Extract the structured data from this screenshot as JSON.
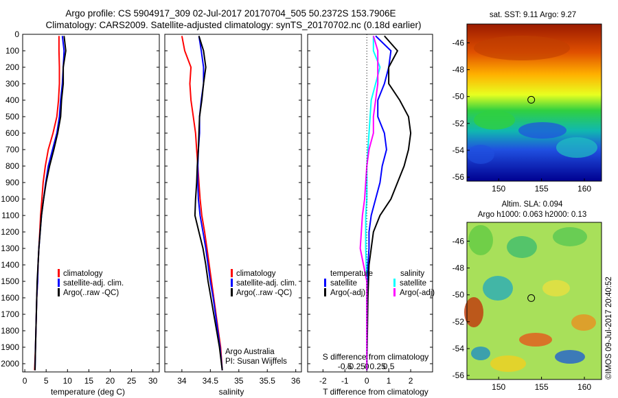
{
  "header": {
    "line1": "Argo profile: CS 5904917_309 02-Jul-2017 20170704_505 50.2372S 153.7906E",
    "line2": "Climatology: CARS2009. Satellite-adjusted climatology: synTS_20170702.nc (0.18d earlier)"
  },
  "colors": {
    "climatology": "#ff0000",
    "satellite": "#0000ff",
    "argo": "#000000",
    "satellite_salinity": "#00ffff",
    "argo_salinity_adj": "#ff00ff"
  },
  "chart_data": [
    {
      "id": "temperature",
      "type": "line",
      "xlabel": "temperature (deg C)",
      "ylabel": "",
      "xlim": [
        -0.5,
        31.5
      ],
      "ylim": [
        2050,
        0
      ],
      "xticks": [
        "0",
        "5",
        "10",
        "15",
        "20",
        "25",
        "30"
      ],
      "yticks": [
        "0",
        "100",
        "200",
        "300",
        "400",
        "500",
        "600",
        "700",
        "800",
        "900",
        "1000",
        "1100",
        "1200",
        "1300",
        "1400",
        "1500",
        "1600",
        "1700",
        "1800",
        "1900",
        "2000"
      ],
      "legend_position": "lower-center",
      "series": [
        {
          "name": "climatology",
          "color": "#ff0000",
          "points": [
            [
              8.0,
              10
            ],
            [
              8.0,
              100
            ],
            [
              8.1,
              200
            ],
            [
              8.1,
              300
            ],
            [
              7.9,
              400
            ],
            [
              7.5,
              500
            ],
            [
              6.6,
              600
            ],
            [
              5.5,
              700
            ],
            [
              4.8,
              800
            ],
            [
              4.3,
              900
            ],
            [
              4.0,
              1000
            ],
            [
              3.7,
              1100
            ],
            [
              3.5,
              1200
            ],
            [
              3.3,
              1300
            ],
            [
              3.1,
              1400
            ],
            [
              3.0,
              1500
            ],
            [
              2.8,
              1600
            ],
            [
              2.7,
              1700
            ],
            [
              2.6,
              1800
            ],
            [
              2.5,
              1900
            ],
            [
              2.3,
              2040
            ]
          ]
        },
        {
          "name": "satellite-adj. clim.",
          "color": "#0000ff",
          "points": [
            [
              8.8,
              10
            ],
            [
              9.2,
              100
            ],
            [
              9.0,
              200
            ],
            [
              8.8,
              300
            ],
            [
              8.4,
              400
            ],
            [
              8.1,
              500
            ],
            [
              7.5,
              600
            ],
            [
              6.5,
              700
            ],
            [
              5.5,
              800
            ],
            [
              4.9,
              900
            ],
            [
              4.4,
              1000
            ],
            [
              3.9,
              1100
            ],
            [
              3.6,
              1200
            ],
            [
              3.3,
              1300
            ],
            [
              3.1,
              1400
            ],
            [
              3.0,
              1500
            ],
            [
              2.8,
              1600
            ],
            [
              2.7,
              1700
            ],
            [
              2.6,
              1800
            ],
            [
              2.5,
              1900
            ],
            [
              2.4,
              2040
            ]
          ]
        },
        {
          "name": "Argo(..raw -QC)",
          "color": "#000000",
          "points": [
            [
              9.2,
              10
            ],
            [
              9.6,
              100
            ],
            [
              9.0,
              200
            ],
            [
              9.0,
              300
            ],
            [
              8.6,
              400
            ],
            [
              8.4,
              500
            ],
            [
              7.7,
              600
            ],
            [
              6.8,
              700
            ],
            [
              5.8,
              800
            ],
            [
              5.0,
              900
            ],
            [
              4.4,
              1000
            ],
            [
              3.9,
              1100
            ],
            [
              3.6,
              1200
            ],
            [
              3.3,
              1300
            ],
            [
              3.1,
              1400
            ],
            [
              2.9,
              1500
            ],
            [
              2.8,
              1600
            ],
            [
              2.7,
              1700
            ],
            [
              2.6,
              1800
            ],
            [
              2.5,
              1900
            ],
            [
              2.4,
              2040
            ]
          ]
        }
      ]
    },
    {
      "id": "salinity",
      "type": "line",
      "xlabel": "salinity",
      "xlim": [
        33.7,
        36.1
      ],
      "ylim": [
        2050,
        0
      ],
      "xticks": [
        "34",
        "34.5",
        "35",
        "35.5",
        "36"
      ],
      "legend_position": "lower-right",
      "annotation": [
        "Argo Australia",
        "PI: Susan Wijffels"
      ],
      "series": [
        {
          "name": "climatology",
          "color": "#ff0000",
          "points": [
            [
              34.0,
              10
            ],
            [
              34.05,
              100
            ],
            [
              34.16,
              200
            ],
            [
              34.14,
              300
            ],
            [
              34.16,
              400
            ],
            [
              34.2,
              500
            ],
            [
              34.24,
              600
            ],
            [
              34.26,
              700
            ],
            [
              34.28,
              800
            ],
            [
              34.3,
              900
            ],
            [
              34.32,
              1000
            ],
            [
              34.35,
              1100
            ],
            [
              34.4,
              1200
            ],
            [
              34.44,
              1300
            ],
            [
              34.48,
              1400
            ],
            [
              34.52,
              1500
            ],
            [
              34.56,
              1600
            ],
            [
              34.6,
              1700
            ],
            [
              34.64,
              1800
            ],
            [
              34.68,
              1900
            ],
            [
              34.71,
              2040
            ]
          ]
        },
        {
          "name": "satellite-adj. clim.",
          "color": "#0000ff",
          "points": [
            [
              34.3,
              10
            ],
            [
              34.34,
              100
            ],
            [
              34.38,
              200
            ],
            [
              34.38,
              300
            ],
            [
              34.34,
              400
            ],
            [
              34.31,
              500
            ],
            [
              34.31,
              600
            ],
            [
              34.29,
              700
            ],
            [
              34.28,
              800
            ],
            [
              34.28,
              900
            ],
            [
              34.29,
              1000
            ],
            [
              34.32,
              1100
            ],
            [
              34.37,
              1200
            ],
            [
              34.42,
              1300
            ],
            [
              34.46,
              1400
            ],
            [
              34.5,
              1500
            ],
            [
              34.55,
              1600
            ],
            [
              34.59,
              1700
            ],
            [
              34.63,
              1800
            ],
            [
              34.67,
              1900
            ],
            [
              34.71,
              2040
            ]
          ]
        },
        {
          "name": "Argo(..raw -QC)",
          "color": "#000000",
          "points": [
            [
              34.3,
              10
            ],
            [
              34.38,
              100
            ],
            [
              34.42,
              200
            ],
            [
              34.38,
              300
            ],
            [
              34.35,
              400
            ],
            [
              34.31,
              500
            ],
            [
              34.3,
              600
            ],
            [
              34.29,
              700
            ],
            [
              34.27,
              800
            ],
            [
              34.26,
              900
            ],
            [
              34.24,
              1000
            ],
            [
              34.23,
              1100
            ],
            [
              34.3,
              1200
            ],
            [
              34.37,
              1300
            ],
            [
              34.42,
              1400
            ],
            [
              34.46,
              1500
            ],
            [
              34.51,
              1600
            ],
            [
              34.56,
              1700
            ],
            [
              34.61,
              1800
            ],
            [
              34.66,
              1900
            ],
            [
              34.71,
              2040
            ]
          ]
        }
      ]
    },
    {
      "id": "differences",
      "type": "line",
      "xlabel": "T difference from climatology",
      "xlabel_top": "S difference from climatology",
      "xlim": [
        -2.7,
        3.0
      ],
      "ylim": [
        2050,
        0
      ],
      "xticks_bottom": [
        "-2",
        "-1",
        "0",
        "1",
        "2"
      ],
      "xticks_top": [
        "-0.5",
        "-0.25",
        "0",
        "0.25",
        "0.5"
      ],
      "legend_position": "lower",
      "legend_headers": [
        "temperature",
        "salinity"
      ],
      "series": [
        {
          "name": "satellite",
          "group": "temperature",
          "color": "#0000ff",
          "points": [
            [
              0.4,
              10
            ],
            [
              1.1,
              100
            ],
            [
              1.0,
              200
            ],
            [
              0.8,
              300
            ],
            [
              0.5,
              400
            ],
            [
              0.5,
              500
            ],
            [
              0.8,
              600
            ],
            [
              0.9,
              700
            ],
            [
              0.7,
              800
            ],
            [
              0.6,
              900
            ],
            [
              0.4,
              1000
            ],
            [
              0.2,
              1100
            ],
            [
              0.1,
              1200
            ],
            [
              0.1,
              1300
            ],
            [
              0.05,
              1400
            ],
            [
              0.0,
              1600
            ],
            [
              0.0,
              2040
            ]
          ]
        },
        {
          "name": "Argo(-adj)",
          "group": "temperature",
          "color": "#000000",
          "points": [
            [
              0.8,
              10
            ],
            [
              1.4,
              100
            ],
            [
              1.0,
              200
            ],
            [
              1.0,
              300
            ],
            [
              1.5,
              400
            ],
            [
              1.9,
              500
            ],
            [
              2.0,
              600
            ],
            [
              1.9,
              700
            ],
            [
              1.7,
              800
            ],
            [
              1.4,
              900
            ],
            [
              1.1,
              1000
            ],
            [
              0.6,
              1100
            ],
            [
              0.3,
              1200
            ],
            [
              0.2,
              1300
            ],
            [
              0.1,
              1400
            ],
            [
              0.05,
              1600
            ],
            [
              0.0,
              2040
            ]
          ]
        },
        {
          "name": "satellite",
          "group": "salinity",
          "color": "#00ffff",
          "points": [
            [
              0.3,
              10
            ],
            [
              0.3,
              100
            ],
            [
              0.6,
              200
            ],
            [
              0.4,
              300
            ],
            [
              0.2,
              400
            ],
            [
              0.15,
              500
            ],
            [
              0.1,
              600
            ],
            [
              0.05,
              700
            ],
            [
              0.0,
              800
            ],
            [
              0.0,
              1000
            ],
            [
              -0.05,
              1100
            ],
            [
              -0.05,
              1300
            ],
            [
              0.0,
              1500
            ],
            [
              0.0,
              2040
            ]
          ]
        },
        {
          "name": "Argo(-adj)",
          "group": "salinity",
          "color": "#ff00ff",
          "points": [
            [
              0.3,
              10
            ],
            [
              0.5,
              100
            ],
            [
              0.5,
              200
            ],
            [
              0.5,
              300
            ],
            [
              0.4,
              400
            ],
            [
              0.3,
              500
            ],
            [
              0.3,
              600
            ],
            [
              0.1,
              700
            ],
            [
              0.0,
              800
            ],
            [
              -0.1,
              1000
            ],
            [
              -0.2,
              1100
            ],
            [
              -0.3,
              1300
            ],
            [
              -0.15,
              1400
            ],
            [
              0.0,
              1500
            ],
            [
              0.0,
              2040
            ]
          ]
        }
      ]
    },
    {
      "id": "sst_map",
      "type": "heatmap",
      "title": "sat. SST: 9.11  Argo: 9.27",
      "xticks": [
        "150",
        "155",
        "160"
      ],
      "yticks": [
        "-46",
        "-48",
        "-50",
        "-52",
        "-54",
        "-56"
      ],
      "marker": {
        "lon": 153.8,
        "lat": -50.24
      }
    },
    {
      "id": "sla_map",
      "type": "heatmap",
      "title_line1": "Altim. SLA: 0.094",
      "title_line2": "Argo h1000: 0.063 h2000: 0.13",
      "xticks": [
        "150",
        "155",
        "160"
      ],
      "yticks": [
        "-46",
        "-48",
        "-50",
        "-52",
        "-54",
        "-56"
      ],
      "marker": {
        "lon": 153.8,
        "lat": -50.24
      }
    }
  ],
  "footer": {
    "credit": "©IMOS 09-Jul-2017 20:40:52"
  }
}
